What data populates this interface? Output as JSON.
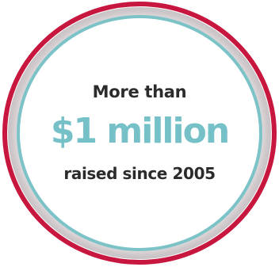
{
  "badge": {
    "line1": "More than",
    "amount": "$1 million",
    "line3": "raised since 2005"
  },
  "colors": {
    "outer_ring": "#c8173f",
    "inner_ring": "#7cc3c8",
    "glow": "#d8d4d6",
    "text_dark": "#2b2b2b",
    "text_accent": "#76c1c8"
  }
}
